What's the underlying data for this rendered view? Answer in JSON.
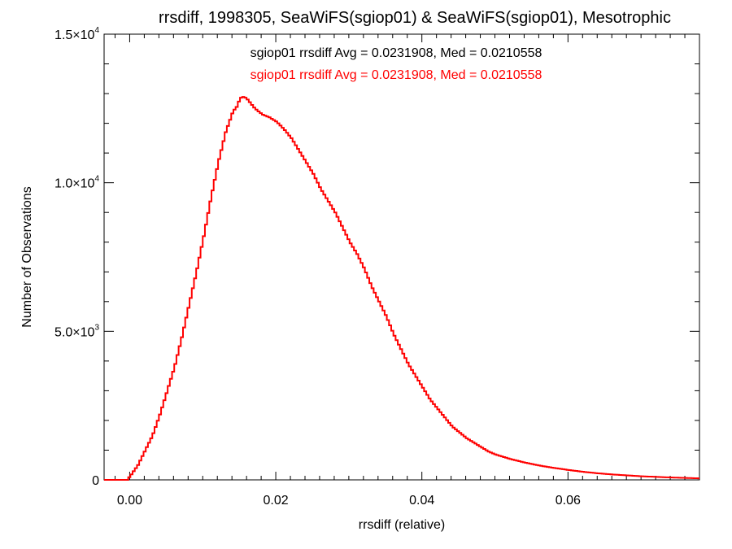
{
  "chart_data": {
    "type": "line",
    "title": "rrsdiff, 1998305, SeaWiFS(sgiop01) & SeaWiFS(sgiop01), Mesotrophic",
    "xlabel": "rrsdiff (relative)",
    "ylabel": "Number of Observations",
    "xlim": [
      -0.0035,
      0.078
    ],
    "ylim": [
      0,
      15000
    ],
    "x_ticks": [
      {
        "value": 0.0,
        "label": "0.00"
      },
      {
        "value": 0.02,
        "label": "0.02"
      },
      {
        "value": 0.04,
        "label": "0.04"
      },
      {
        "value": 0.06,
        "label": "0.06"
      }
    ],
    "y_ticks": [
      {
        "value": 0,
        "mant": "0",
        "exp": ""
      },
      {
        "value": 5000,
        "mant": "5.0×10",
        "exp": "3"
      },
      {
        "value": 10000,
        "mant": "1.0×10",
        "exp": "4"
      },
      {
        "value": 15000,
        "mant": "1.5×10",
        "exp": "4"
      }
    ],
    "annotations": [
      {
        "text": "sgiop01 rrsdiff Avg = 0.0231908, Med = 0.0210558",
        "color": "#000000"
      },
      {
        "text": "sgiop01 rrsdiff Avg = 0.0231908, Med = 0.0210558",
        "color": "#ff0000"
      }
    ],
    "series": [
      {
        "color": "#ff0000",
        "line_style": "steps",
        "points": [
          [
            -0.0035,
            0
          ],
          [
            -0.0005,
            0
          ],
          [
            0.0,
            150
          ],
          [
            0.001,
            500
          ],
          [
            0.002,
            1000
          ],
          [
            0.003,
            1500
          ],
          [
            0.004,
            2200
          ],
          [
            0.005,
            3000
          ],
          [
            0.006,
            3800
          ],
          [
            0.007,
            4800
          ],
          [
            0.008,
            5900
          ],
          [
            0.009,
            7000
          ],
          [
            0.01,
            8200
          ],
          [
            0.011,
            9500
          ],
          [
            0.012,
            10700
          ],
          [
            0.013,
            11700
          ],
          [
            0.014,
            12400
          ],
          [
            0.0145,
            12550
          ],
          [
            0.015,
            12850
          ],
          [
            0.0155,
            12900
          ],
          [
            0.016,
            12800
          ],
          [
            0.017,
            12500
          ],
          [
            0.018,
            12300
          ],
          [
            0.019,
            12200
          ],
          [
            0.02,
            12050
          ],
          [
            0.021,
            11800
          ],
          [
            0.022,
            11500
          ],
          [
            0.023,
            11100
          ],
          [
            0.024,
            10700
          ],
          [
            0.025,
            10300
          ],
          [
            0.026,
            9800
          ],
          [
            0.027,
            9400
          ],
          [
            0.028,
            9000
          ],
          [
            0.029,
            8500
          ],
          [
            0.03,
            8000
          ],
          [
            0.031,
            7600
          ],
          [
            0.032,
            7100
          ],
          [
            0.033,
            6500
          ],
          [
            0.034,
            6000
          ],
          [
            0.035,
            5500
          ],
          [
            0.036,
            4900
          ],
          [
            0.037,
            4400
          ],
          [
            0.038,
            3900
          ],
          [
            0.039,
            3500
          ],
          [
            0.04,
            3100
          ],
          [
            0.041,
            2700
          ],
          [
            0.042,
            2400
          ],
          [
            0.043,
            2100
          ],
          [
            0.044,
            1800
          ],
          [
            0.045,
            1600
          ],
          [
            0.046,
            1400
          ],
          [
            0.047,
            1250
          ],
          [
            0.048,
            1100
          ],
          [
            0.049,
            950
          ],
          [
            0.05,
            850
          ],
          [
            0.052,
            700
          ],
          [
            0.054,
            580
          ],
          [
            0.056,
            480
          ],
          [
            0.058,
            400
          ],
          [
            0.06,
            330
          ],
          [
            0.062,
            270
          ],
          [
            0.064,
            220
          ],
          [
            0.066,
            180
          ],
          [
            0.068,
            150
          ],
          [
            0.07,
            120
          ],
          [
            0.072,
            100
          ],
          [
            0.074,
            80
          ],
          [
            0.076,
            65
          ],
          [
            0.078,
            50
          ]
        ]
      }
    ]
  }
}
